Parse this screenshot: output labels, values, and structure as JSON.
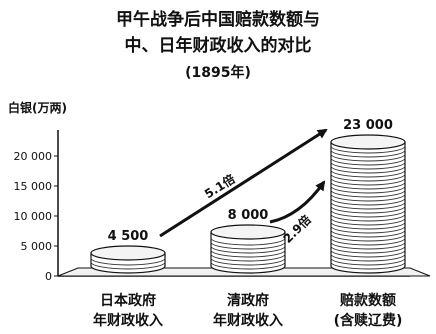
{
  "title_line1": "甲午战争后中国赔款数额与",
  "title_line2": "中、日年财政收入的对比",
  "title_year": "(1895年)",
  "chart_data": {
    "type": "bar",
    "title": "甲午战争后中国赔款数额与中、日年财政收入的对比 (1895年)",
    "ylabel": "白银(万两)",
    "ylim": [
      0,
      23000
    ],
    "yticks": [
      0,
      5000,
      10000,
      15000,
      20000
    ],
    "ytick_labels": [
      "0",
      "5 000",
      "10 000",
      "15 000",
      "20 000"
    ],
    "categories": [
      {
        "line1": "日本政府",
        "line2": "年财政收入"
      },
      {
        "line1": "清政府",
        "line2": "年财政收入"
      },
      {
        "line1": "赔款数额",
        "line2": "(含赎辽费)"
      }
    ],
    "values": [
      4500,
      8000,
      23000
    ],
    "value_labels": [
      "4 500",
      "8 000",
      "23 000"
    ],
    "comparisons": [
      {
        "from": 0,
        "to": 2,
        "label": "5.1倍"
      },
      {
        "from": 1,
        "to": 2,
        "label": "2.9倍"
      }
    ]
  }
}
